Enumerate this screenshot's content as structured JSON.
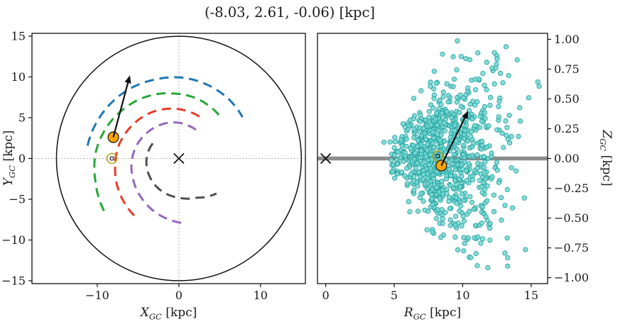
{
  "title": "(-8.03, 2.61, -0.06) [kpc]",
  "chart_data": [
    {
      "id": "xy-plane-map",
      "type": "line",
      "xlabel": {
        "main": "X",
        "sub": "GC",
        "unit": " [kpc]"
      },
      "ylabel": {
        "main": "Y",
        "sub": "GC",
        "unit": " [kpc]"
      },
      "xlim": [
        -18,
        15.5
      ],
      "ylim": [
        -15.35,
        15.35
      ],
      "xticks": [
        -10,
        0,
        10
      ],
      "yticks": [
        -15,
        -10,
        -5,
        0,
        5,
        10,
        15
      ],
      "grid": "dotted-crosshair-at-zero",
      "grid_color": "#999999",
      "boundary_circle_radius_kpc": 15,
      "spiral_arms": [
        {
          "name": "outer-blue",
          "color": "#1f77b4",
          "polar_points_deg_kpc": [
            [
              172,
              11.3
            ],
            [
              150,
              10.9
            ],
            [
              128,
              10.5
            ],
            [
              106,
              10.1
            ],
            [
              90,
              9.95
            ],
            [
              70,
              9.7
            ],
            [
              50,
              9.5
            ],
            [
              33,
              9.3
            ]
          ]
        },
        {
          "name": "perseus-green",
          "color": "#27a737",
          "polar_points_deg_kpc": [
            [
              215,
              11.2
            ],
            [
              195,
              10.6
            ],
            [
              175,
              10.2
            ],
            [
              155,
              9.6
            ],
            [
              135,
              9.0
            ],
            [
              115,
              8.5
            ],
            [
              95,
              8.0
            ],
            [
              75,
              7.7
            ],
            [
              58,
              7.4
            ],
            [
              44,
              7.2
            ]
          ]
        },
        {
          "name": "local-red",
          "color": "#ea3b24",
          "polar_points_deg_kpc": [
            [
              232,
              8.9
            ],
            [
              210,
              8.4
            ],
            [
              188,
              7.9
            ],
            [
              166,
              7.5
            ],
            [
              144,
              7.0
            ],
            [
              122,
              6.6
            ],
            [
              100,
              6.2
            ],
            [
              80,
              5.9
            ],
            [
              62,
              5.7
            ]
          ]
        },
        {
          "name": "sagittarius-purple",
          "color": "#9467bd",
          "polar_points_deg_kpc": [
            [
              272,
              7.9
            ],
            [
              250,
              7.3
            ],
            [
              228,
              6.7
            ],
            [
              206,
              6.2
            ],
            [
              184,
              5.8
            ],
            [
              162,
              5.4
            ],
            [
              140,
              5.0
            ],
            [
              118,
              4.7
            ],
            [
              96,
              4.45
            ],
            [
              74,
              4.2
            ],
            [
              55,
              4.05
            ]
          ]
        },
        {
          "name": "scutum-gray",
          "color": "#4f4f4f",
          "polar_points_deg_kpc": [
            [
              150,
              3.7
            ],
            [
              180,
              3.95
            ],
            [
              210,
              4.2
            ],
            [
              240,
              4.5
            ],
            [
              270,
              4.8
            ],
            [
              295,
              5.3
            ],
            [
              317,
              6.3
            ]
          ]
        }
      ],
      "markers": {
        "galactic_center": {
          "x": 0,
          "y": 0,
          "symbol": "x",
          "color": "#111111"
        },
        "sun": {
          "x": -8.2,
          "y": 0,
          "symbol": "circle-with-square",
          "color": "#b3a11c"
        },
        "star": {
          "x": -8.03,
          "y": 2.61,
          "symbol": "filled-circle",
          "color": "#ffa500"
        }
      },
      "arrow": {
        "from": [
          -8.03,
          2.61
        ],
        "to": [
          -6.0,
          10.2
        ],
        "color": "#111111"
      }
    },
    {
      "id": "r-z-scatter",
      "type": "scatter",
      "xlabel": {
        "main": "R",
        "sub": "GC",
        "unit": " [kpc]"
      },
      "ylabel": {
        "main": "Z",
        "sub": "GC",
        "unit": " [kpc]"
      },
      "xlim": [
        -0.6,
        16.2
      ],
      "ylim": [
        -1.05,
        1.05
      ],
      "xticks": [
        0,
        5,
        10,
        15
      ],
      "yticks": [
        1.0,
        0.75,
        0.5,
        0.25,
        0.0,
        -0.25,
        -0.5,
        -0.75,
        -1.0
      ],
      "disk_line": {
        "y": 0,
        "color": "#8c8c8c",
        "width": 5.5
      },
      "scatter": {
        "n": 900,
        "seed": 20240613,
        "r_center": 8.6,
        "r_sigma_left": 1.7,
        "r_sigma_right": 2.4,
        "r_min": 4.0,
        "r_max": 15.6,
        "z_center": 0.03,
        "z_sigma_base": 0.05,
        "z_sigma_slope": 0.055,
        "color": "#74d6d0",
        "edge": "#1d9e9e",
        "point_radius_px": 3.2
      },
      "markers": {
        "galactic_center": {
          "x": 0,
          "y": 0,
          "symbol": "x",
          "color": "#111111"
        },
        "sun": {
          "x": 8.18,
          "y": 0.02,
          "symbol": "circle-with-square",
          "color": "#b3a11c"
        },
        "star": {
          "x": 8.44,
          "y": -0.06,
          "symbol": "filled-circle",
          "color": "#ffa500"
        }
      },
      "arrow": {
        "from": [
          8.44,
          -0.06
        ],
        "to": [
          10.4,
          0.4
        ],
        "color": "#111111"
      }
    }
  ]
}
